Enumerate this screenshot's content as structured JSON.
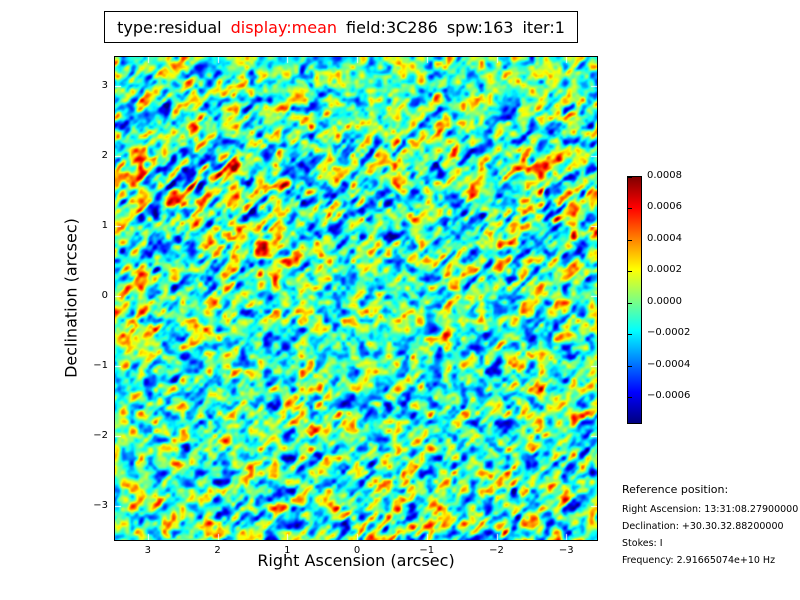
{
  "figure": {
    "background": "#ffffff",
    "title": {
      "segments": [
        {
          "text": "type:residual",
          "color": "#000000"
        },
        {
          "text": "display:mean",
          "color": "#ff0000"
        },
        {
          "text": "field:3C286",
          "color": "#000000"
        },
        {
          "text": "spw:163",
          "color": "#000000"
        },
        {
          "text": "iter:1",
          "color": "#000000"
        }
      ]
    }
  },
  "chart_data": {
    "type": "heatmap",
    "description": "Interferometric imaging residual noise map (mean residual for field 3C286), jet colormap, mostly teal/green background with diagonal blue and yellow/orange streaks running lower-left to upper-right and sparse dark-red/dark-blue compact spots",
    "xlabel": "Right Ascension (arcsec)",
    "ylabel": "Declination (arcsec)",
    "x_ticks": [
      3,
      2,
      1,
      0,
      -1,
      -2,
      -3
    ],
    "x_tick_labels": [
      "3",
      "2",
      "1",
      "0",
      "−1",
      "−2",
      "−3"
    ],
    "y_ticks": [
      3,
      2,
      1,
      0,
      -1,
      -2,
      -3
    ],
    "y_tick_labels": [
      "3",
      "2",
      "1",
      "0",
      "−1",
      "−2",
      "−3"
    ],
    "xlim": [
      3.47,
      -3.44
    ],
    "ylim": [
      -3.48,
      3.42
    ],
    "tick_color": "#ffffff",
    "frame_color": "#000000",
    "colormap": "jet",
    "colormap_stops": [
      {
        "pos": 0.0,
        "color": "#000080"
      },
      {
        "pos": 0.125,
        "color": "#0000ff"
      },
      {
        "pos": 0.375,
        "color": "#00ffff"
      },
      {
        "pos": 0.625,
        "color": "#ffff00"
      },
      {
        "pos": 0.875,
        "color": "#ff0000"
      },
      {
        "pos": 1.0,
        "color": "#800000"
      }
    ],
    "vmin": -0.000765,
    "vmax": 0.0008,
    "colorbar_ticks": [
      0.0008,
      0.0006,
      0.0004,
      0.0002,
      0.0,
      -0.0002,
      -0.0004,
      -0.0006
    ],
    "colorbar_tick_labels": [
      "0.0008",
      "0.0006",
      "0.0004",
      "0.0002",
      "0.0000",
      "−0.0002",
      "−0.0004",
      "−0.0006"
    ],
    "texture": {
      "seed1": 1337,
      "seed2": 9021,
      "seed3": 4242,
      "streak_direction": "lower-left to upper-right",
      "streak1": {
        "along": 21,
        "across": 5.4,
        "weight": 0.95
      },
      "streak2": {
        "along": 10,
        "across": 3.8,
        "weight": 0.5
      },
      "blob1": {
        "scale": 8.5,
        "weight": 0.8
      },
      "blob2": {
        "scale": 4.6,
        "weight": 0.45
      },
      "region_scale": 130,
      "center": 0.46,
      "gain": 0.3
    }
  },
  "reference": {
    "header": "Reference position:",
    "lines": [
      "Right Ascension: 13:31:08.27900000",
      "Declination: +30.30.32.88200000",
      "Stokes: I",
      "Frequency: 2.91665074e+10 Hz"
    ]
  }
}
